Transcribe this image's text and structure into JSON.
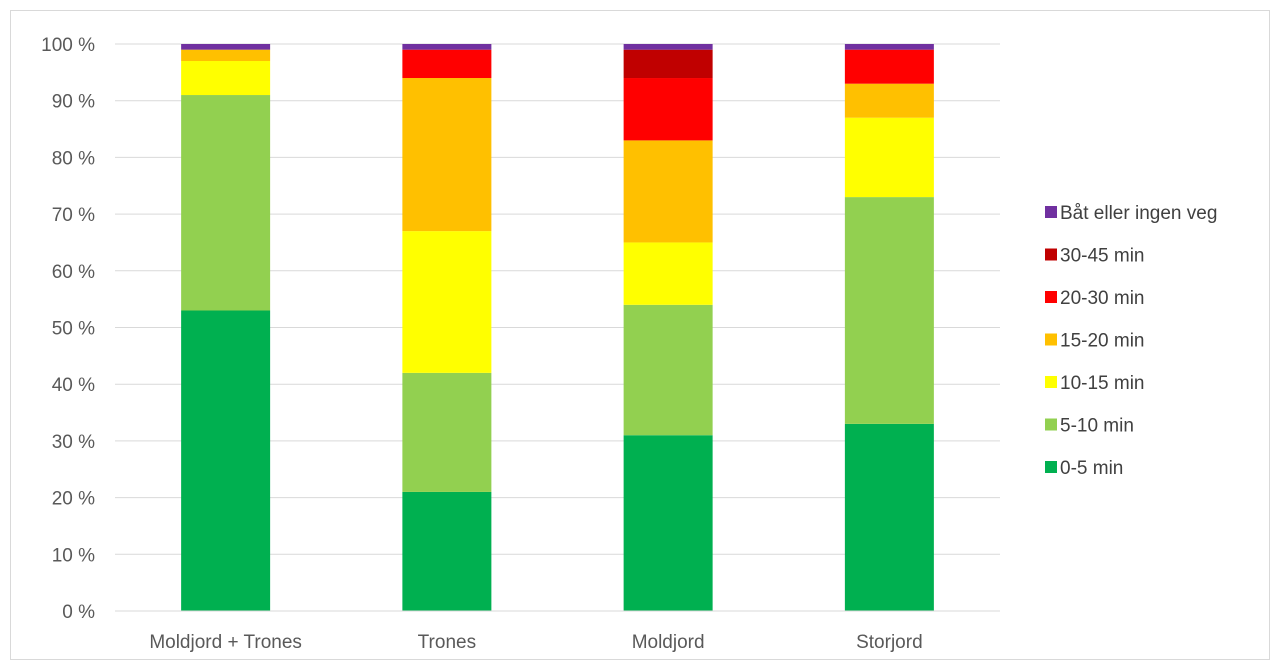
{
  "chart_data": {
    "type": "bar",
    "stacked": true,
    "percent": true,
    "categories": [
      "Moldjord + Trones",
      "Trones",
      "Moldjord",
      "Storjord"
    ],
    "series": [
      {
        "name": "0-5 min",
        "color": "#00b050",
        "values": [
          53,
          21,
          31,
          33
        ]
      },
      {
        "name": "5-10 min",
        "color": "#92d050",
        "values": [
          38,
          21,
          23,
          40
        ]
      },
      {
        "name": "10-15 min",
        "color": "#ffff00",
        "values": [
          6,
          25,
          11,
          14
        ]
      },
      {
        "name": "15-20 min",
        "color": "#ffc000",
        "values": [
          2,
          27,
          18,
          6
        ]
      },
      {
        "name": "20-30 min",
        "color": "#ff0000",
        "values": [
          0,
          5,
          11,
          6
        ]
      },
      {
        "name": "30-45 min",
        "color": "#c00000",
        "values": [
          0,
          0,
          5,
          0
        ]
      },
      {
        "name": "Båt eller ingen veg",
        "color": "#7030a0",
        "values": [
          1,
          1,
          1,
          1
        ]
      }
    ],
    "y_ticks": [
      "0 %",
      "10 %",
      "20 %",
      "30 %",
      "40 %",
      "50 %",
      "60 %",
      "70 %",
      "80 %",
      "90 %",
      "100 %"
    ],
    "ylim": [
      0,
      100
    ],
    "grid": true,
    "legend_position": "right"
  }
}
